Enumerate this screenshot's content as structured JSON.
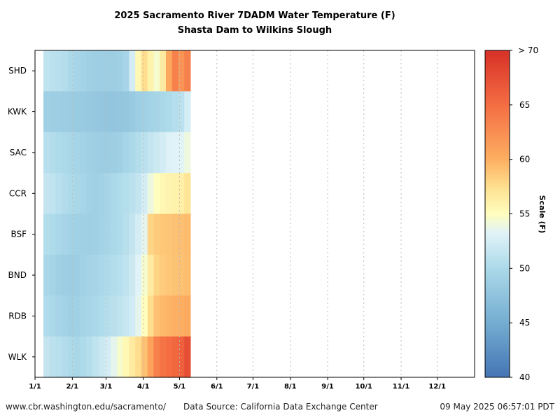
{
  "chart_data": {
    "type": "heatmap",
    "title": "2025 Sacramento River 7DADM Water Temperature (F)",
    "subtitle": "Shasta Dam to Wilkins Slough",
    "rows": [
      "SHD",
      "KWK",
      "SAC",
      "CCR",
      "BSF",
      "BND",
      "RDB",
      "WLK"
    ],
    "x_ticks": [
      "1/1",
      "2/1",
      "3/1",
      "4/1",
      "5/1",
      "6/1",
      "7/1",
      "8/1",
      "9/1",
      "10/1",
      "11/1",
      "12/1"
    ],
    "x_tick_days": [
      0,
      31,
      59,
      90,
      120,
      151,
      181,
      212,
      243,
      273,
      304,
      334
    ],
    "x_range_days": [
      0,
      365
    ],
    "data_start_day": 7,
    "data_end_day": 129,
    "colorbar": {
      "label": "Scale (F)",
      "range": [
        40,
        70
      ],
      "ticks": [
        40,
        45,
        50,
        55,
        60,
        65
      ],
      "top_label": "> 70"
    },
    "series": [
      {
        "name": "SHD",
        "values": [
          51.2,
          51.0,
          50.8,
          50.5,
          50.0,
          49.6,
          49.3,
          49.0,
          48.8,
          48.7,
          48.7,
          48.8,
          49.0,
          49.6,
          52.5,
          55.5,
          57.5,
          56.0,
          54.5,
          56.5,
          60.5,
          63.5,
          62.0,
          63.5
        ]
      },
      {
        "name": "KWK",
        "values": [
          49.0,
          48.8,
          48.7,
          48.6,
          48.5,
          48.4,
          48.3,
          48.2,
          48.0,
          47.9,
          47.8,
          47.8,
          47.9,
          48.0,
          48.3,
          48.7,
          49.0,
          49.3,
          49.6,
          49.9,
          50.2,
          50.6,
          51.0,
          52.5
        ]
      },
      {
        "name": "SAC",
        "values": [
          50.8,
          50.5,
          50.2,
          50.0,
          49.8,
          49.5,
          49.2,
          49.0,
          48.7,
          48.6,
          48.6,
          48.7,
          49.0,
          49.5,
          50.0,
          50.5,
          51.0,
          51.5,
          52.0,
          52.5,
          53.0,
          53.2,
          53.3,
          54.0
        ]
      },
      {
        "name": "CCR",
        "values": [
          51.5,
          51.2,
          50.8,
          50.4,
          50.1,
          49.8,
          49.5,
          49.2,
          49.0,
          49.2,
          49.6,
          50.0,
          50.3,
          50.6,
          51.0,
          51.5,
          52.5,
          54.0,
          55.0,
          55.5,
          55.8,
          56.0,
          56.2,
          57.0
        ]
      },
      {
        "name": "BSF",
        "values": [
          50.5,
          50.2,
          49.9,
          49.6,
          49.3,
          49.1,
          49.0,
          48.9,
          49.0,
          49.3,
          49.7,
          50.0,
          50.3,
          50.7,
          51.5,
          52.5,
          53.5,
          58.0,
          58.5,
          58.7,
          58.8,
          59.0,
          59.1,
          59.3
        ]
      },
      {
        "name": "BND",
        "values": [
          49.8,
          49.4,
          49.0,
          48.7,
          48.6,
          48.8,
          49.1,
          49.4,
          49.6,
          49.9,
          50.2,
          50.5,
          50.8,
          51.2,
          52.0,
          53.2,
          54.5,
          56.5,
          58.0,
          58.5,
          58.7,
          58.9,
          59.0,
          59.2
        ]
      },
      {
        "name": "RDB",
        "values": [
          50.3,
          50.0,
          49.6,
          49.3,
          49.0,
          49.1,
          49.4,
          49.7,
          50.0,
          50.3,
          50.6,
          50.9,
          51.2,
          51.6,
          52.3,
          53.5,
          55.0,
          57.5,
          59.0,
          59.5,
          59.7,
          59.9,
          60.0,
          60.3
        ]
      },
      {
        "name": "WLK",
        "values": [
          51.5,
          51.0,
          50.7,
          50.4,
          50.1,
          49.8,
          50.2,
          50.6,
          51.2,
          51.8,
          52.5,
          53.5,
          54.5,
          55.5,
          56.5,
          57.5,
          59.0,
          61.0,
          63.5,
          64.5,
          65.0,
          65.5,
          66.0,
          67.5
        ]
      }
    ]
  },
  "footer": {
    "left": "www.cbr.washington.edu/sacramento/",
    "center": "Data Source: California Data Exchange Center",
    "right": "09 May 2025 06:57:01 PDT"
  }
}
